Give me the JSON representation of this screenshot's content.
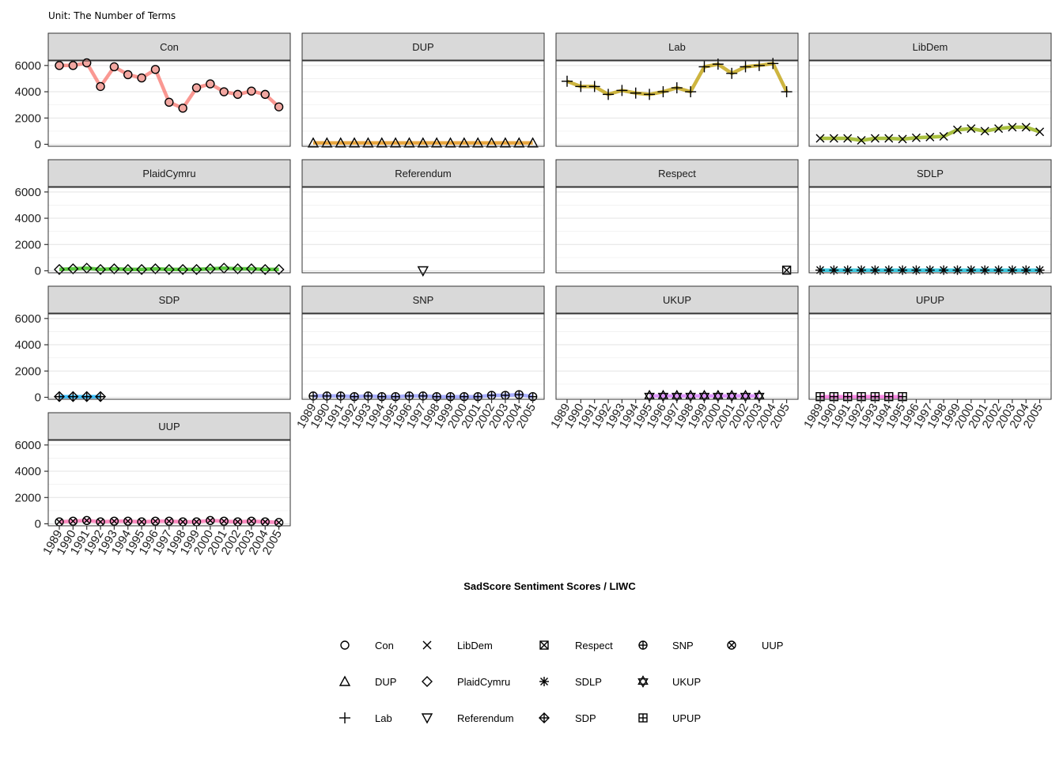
{
  "chart_data": {
    "type": "line",
    "subtitle": "Unit: The Number of Terms",
    "xlabel": "SadScore Sentiment Scores / LIWC",
    "ylabel": "",
    "ylim": [
      -150,
      6350
    ],
    "yticks": [
      0,
      2000,
      4000,
      6000
    ],
    "x_ticks": [
      "1989",
      "1990",
      "1991",
      "1992",
      "1993",
      "1994",
      "1995",
      "1996",
      "1997",
      "1998",
      "1999",
      "2000",
      "2001",
      "2002",
      "2003",
      "2004",
      "2005"
    ],
    "layout": "facet-wrap 4 columns",
    "grid": true,
    "legend_position": "bottom",
    "panels": [
      {
        "name": "Con",
        "color": "#F8766D",
        "shape": "circle",
        "years": [
          1989,
          1990,
          1991,
          1992,
          1993,
          1994,
          1995,
          1996,
          1997,
          1998,
          1999,
          2000,
          2001,
          2002,
          2003,
          2004,
          2005
        ],
        "values": [
          6000,
          6000,
          6200,
          4400,
          5900,
          5300,
          5050,
          5700,
          3200,
          2750,
          4300,
          4600,
          4000,
          3800,
          4050,
          3800,
          2850
        ]
      },
      {
        "name": "DUP",
        "color": "#E18A00",
        "shape": "triangle",
        "years": [
          1989,
          1990,
          1991,
          1992,
          1993,
          1994,
          1995,
          1996,
          1997,
          1998,
          1999,
          2000,
          2001,
          2002,
          2003,
          2004,
          2005
        ],
        "values": [
          100,
          100,
          100,
          100,
          100,
          100,
          100,
          100,
          100,
          100,
          100,
          100,
          100,
          100,
          100,
          100,
          100
        ]
      },
      {
        "name": "Lab",
        "color": "#BE9C00",
        "shape": "plus",
        "years": [
          1989,
          1990,
          1991,
          1992,
          1993,
          1994,
          1995,
          1996,
          1997,
          1998,
          1999,
          2000,
          2001,
          2002,
          2003,
          2004,
          2005
        ],
        "values": [
          4800,
          4400,
          4400,
          3800,
          4100,
          3900,
          3800,
          4000,
          4300,
          4000,
          5900,
          6100,
          5400,
          5900,
          6000,
          6150,
          4000
        ]
      },
      {
        "name": "LibDem",
        "color": "#8CAB00",
        "shape": "cross",
        "years": [
          1989,
          1990,
          1991,
          1992,
          1993,
          1994,
          1995,
          1996,
          1997,
          1998,
          1999,
          2000,
          2001,
          2002,
          2003,
          2004,
          2005
        ],
        "values": [
          450,
          450,
          450,
          300,
          450,
          450,
          400,
          500,
          550,
          600,
          1100,
          1200,
          1000,
          1200,
          1300,
          1300,
          950
        ]
      },
      {
        "name": "PlaidCymru",
        "color": "#24B700",
        "shape": "diamond",
        "years": [
          1989,
          1990,
          1991,
          1992,
          1993,
          1994,
          1995,
          1996,
          1997,
          1998,
          1999,
          2000,
          2001,
          2002,
          2003,
          2004,
          2005
        ],
        "values": [
          100,
          150,
          200,
          100,
          150,
          100,
          100,
          150,
          100,
          100,
          100,
          150,
          200,
          150,
          150,
          100,
          100
        ]
      },
      {
        "name": "Referendum",
        "color": "#00BE70",
        "shape": "triangle-down",
        "years": [
          1997
        ],
        "values": [
          0
        ]
      },
      {
        "name": "Respect",
        "color": "#00C1AB",
        "shape": "square-cross",
        "years": [
          2005
        ],
        "values": [
          50
        ]
      },
      {
        "name": "SDLP",
        "color": "#00BBDA",
        "shape": "asterisk",
        "years": [
          1989,
          1990,
          1991,
          1992,
          1993,
          1994,
          1995,
          1996,
          1997,
          1998,
          1999,
          2000,
          2001,
          2002,
          2003,
          2004,
          2005
        ],
        "values": [
          50,
          50,
          50,
          50,
          50,
          50,
          50,
          50,
          50,
          50,
          50,
          50,
          50,
          50,
          50,
          50,
          50
        ]
      },
      {
        "name": "SDP",
        "color": "#00ACFC",
        "shape": "diamond-plus",
        "years": [
          1989,
          1990,
          1991,
          1992
        ],
        "values": [
          50,
          50,
          50,
          50
        ]
      },
      {
        "name": "SNP",
        "color": "#8B93FF",
        "shape": "circle-plus",
        "years": [
          1989,
          1990,
          1991,
          1992,
          1993,
          1994,
          1995,
          1996,
          1997,
          1998,
          1999,
          2000,
          2001,
          2002,
          2003,
          2004,
          2005
        ],
        "values": [
          100,
          100,
          100,
          50,
          100,
          50,
          50,
          100,
          100,
          50,
          50,
          50,
          50,
          150,
          150,
          200,
          50
        ]
      },
      {
        "name": "UKUP",
        "color": "#D575FE",
        "shape": "star-of-david",
        "years": [
          1995,
          1996,
          1997,
          1998,
          1999,
          2000,
          2001,
          2002,
          2003
        ],
        "values": [
          100,
          100,
          100,
          100,
          100,
          100,
          100,
          100,
          100
        ]
      },
      {
        "name": "UPUP",
        "color": "#F962DD",
        "shape": "square-plus",
        "years": [
          1989,
          1990,
          1991,
          1992,
          1993,
          1994,
          1995
        ],
        "values": [
          50,
          50,
          50,
          50,
          50,
          50,
          50
        ]
      },
      {
        "name": "UUP",
        "color": "#FF65AC",
        "shape": "circle-cross",
        "years": [
          1989,
          1990,
          1991,
          1992,
          1993,
          1994,
          1995,
          1996,
          1997,
          1998,
          1999,
          2000,
          2001,
          2002,
          2003,
          2004,
          2005
        ],
        "values": [
          150,
          200,
          250,
          150,
          200,
          200,
          150,
          200,
          200,
          150,
          150,
          250,
          200,
          150,
          200,
          150,
          100
        ]
      }
    ],
    "legend": [
      {
        "label": "Con",
        "shape": "circle"
      },
      {
        "label": "DUP",
        "shape": "triangle"
      },
      {
        "label": "Lab",
        "shape": "plus"
      },
      {
        "label": "LibDem",
        "shape": "cross"
      },
      {
        "label": "PlaidCymru",
        "shape": "diamond"
      },
      {
        "label": "Referendum",
        "shape": "triangle-down"
      },
      {
        "label": "Respect",
        "shape": "square-cross"
      },
      {
        "label": "SDLP",
        "shape": "asterisk"
      },
      {
        "label": "SDP",
        "shape": "diamond-plus"
      },
      {
        "label": "SNP",
        "shape": "circle-plus"
      },
      {
        "label": "UKUP",
        "shape": "star-of-david"
      },
      {
        "label": "UPUP",
        "shape": "square-plus"
      },
      {
        "label": "UUP",
        "shape": "circle-cross"
      }
    ]
  }
}
